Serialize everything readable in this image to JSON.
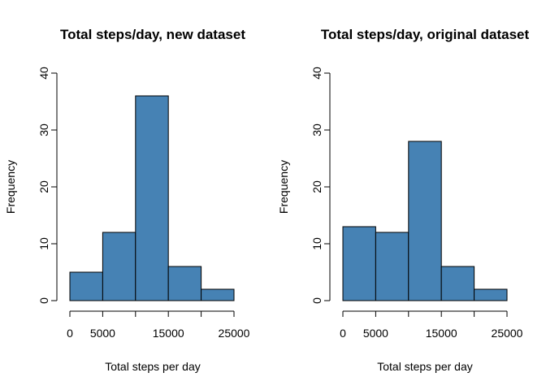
{
  "colors": {
    "bar_fill": "#4682B4",
    "bar_stroke": "#000000",
    "axis": "#000000",
    "background": "#ffffff"
  },
  "chart_data": [
    {
      "type": "bar",
      "title": "Total steps/day, new dataset",
      "xlabel": "Total steps per day",
      "ylabel": "Frequency",
      "bins": [
        [
          0,
          5000
        ],
        [
          5000,
          10000
        ],
        [
          10000,
          15000
        ],
        [
          15000,
          20000
        ],
        [
          20000,
          25000
        ]
      ],
      "values": [
        5,
        12,
        36,
        6,
        2
      ],
      "xlim": [
        0,
        25000
      ],
      "ylim": [
        0,
        40
      ],
      "xticks": [
        0,
        5000,
        15000,
        25000
      ],
      "xtick_labels": [
        "0",
        "5000",
        "15000",
        "25000"
      ],
      "xtick_marks": [
        0,
        5000,
        10000,
        15000,
        20000,
        25000
      ],
      "yticks": [
        0,
        10,
        20,
        30,
        40
      ],
      "ytick_labels": [
        "0",
        "10",
        "20",
        "30",
        "40"
      ],
      "grid": false,
      "legend": "none"
    },
    {
      "type": "bar",
      "title": "Total steps/day, original dataset",
      "xlabel": "Total steps per day",
      "ylabel": "Frequency",
      "bins": [
        [
          0,
          5000
        ],
        [
          5000,
          10000
        ],
        [
          10000,
          15000
        ],
        [
          15000,
          20000
        ],
        [
          20000,
          25000
        ]
      ],
      "values": [
        13,
        12,
        28,
        6,
        2
      ],
      "xlim": [
        0,
        25000
      ],
      "ylim": [
        0,
        40
      ],
      "xticks": [
        0,
        5000,
        15000,
        25000
      ],
      "xtick_labels": [
        "0",
        "5000",
        "15000",
        "25000"
      ],
      "xtick_marks": [
        0,
        5000,
        10000,
        15000,
        20000,
        25000
      ],
      "yticks": [
        0,
        10,
        20,
        30,
        40
      ],
      "ytick_labels": [
        "0",
        "10",
        "20",
        "30",
        "40"
      ],
      "grid": false,
      "legend": "none"
    }
  ]
}
